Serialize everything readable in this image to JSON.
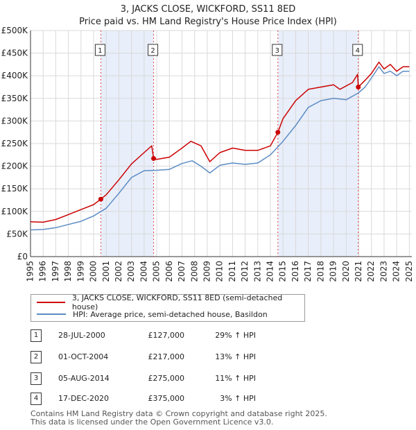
{
  "header": {
    "title": "3, JACKS CLOSE, WICKFORD, SS11 8ED",
    "subtitle": "Price paid vs. HM Land Registry's House Price Index (HPI)"
  },
  "chart_data": {
    "type": "line",
    "title": "3, JACKS CLOSE, WICKFORD, SS11 8ED",
    "subtitle": "Price paid vs. HM Land Registry's House Price Index (HPI)",
    "xlabel": "",
    "ylabel": "",
    "xlim": [
      1995,
      2025.2
    ],
    "ylim": [
      0,
      500000
    ],
    "y_ticks": [
      {
        "value": 0,
        "label": "£0"
      },
      {
        "value": 50000,
        "label": "£50K"
      },
      {
        "value": 100000,
        "label": "£100K"
      },
      {
        "value": 150000,
        "label": "£150K"
      },
      {
        "value": 200000,
        "label": "£200K"
      },
      {
        "value": 250000,
        "label": "£250K"
      },
      {
        "value": 300000,
        "label": "£300K"
      },
      {
        "value": 350000,
        "label": "£350K"
      },
      {
        "value": 400000,
        "label": "£400K"
      },
      {
        "value": 450000,
        "label": "£450K"
      },
      {
        "value": 500000,
        "label": "£500K"
      }
    ],
    "x_ticks": [
      1995,
      1996,
      1997,
      1998,
      1999,
      2000,
      2001,
      2002,
      2003,
      2004,
      2005,
      2006,
      2007,
      2008,
      2009,
      2010,
      2011,
      2012,
      2013,
      2014,
      2015,
      2016,
      2017,
      2018,
      2019,
      2020,
      2021,
      2022,
      2023,
      2024,
      2025
    ],
    "grid": true,
    "shaded_periods": [
      [
        2000.57,
        2004.75
      ],
      [
        2014.59,
        2020.96
      ]
    ],
    "series": [
      {
        "name": "3, JACKS CLOSE, WICKFORD, SS11 8ED (semi-detached house)",
        "color": "#cc0000",
        "x": [
          1995,
          1996,
          1997,
          1998,
          1999,
          2000,
          2000.57,
          2001,
          2002,
          2003,
          2004,
          2004.6,
          2004.75,
          2005,
          2006,
          2007,
          2007.7,
          2008.5,
          2009.2,
          2010,
          2011,
          2012,
          2013,
          2014,
          2014.59,
          2015,
          2016,
          2017,
          2018,
          2019,
          2019.5,
          2020.5,
          2020.9,
          2020.96,
          2021.5,
          2022,
          2022.6,
          2023,
          2023.5,
          2024,
          2024.5,
          2025
        ],
        "values": [
          77000,
          76000,
          82000,
          93000,
          104000,
          115000,
          127000,
          137000,
          170000,
          205000,
          230000,
          245000,
          217000,
          215000,
          220000,
          240000,
          255000,
          245000,
          210000,
          230000,
          240000,
          235000,
          235000,
          245000,
          275000,
          305000,
          345000,
          370000,
          375000,
          380000,
          370000,
          385000,
          403000,
          375000,
          390000,
          405000,
          430000,
          415000,
          425000,
          410000,
          420000,
          420000
        ]
      },
      {
        "name": "HPI: Average price, semi-detached house, Basildon",
        "color": "#5b8cc4",
        "x": [
          1995,
          1996,
          1997,
          1998,
          1999,
          2000,
          2001,
          2002,
          2003,
          2004,
          2005,
          2006,
          2007,
          2007.8,
          2008.5,
          2009.2,
          2010,
          2011,
          2012,
          2013,
          2014,
          2015,
          2016,
          2017,
          2018,
          2019,
          2020,
          2020.96,
          2021.5,
          2022,
          2022.6,
          2023,
          2023.5,
          2024,
          2024.5,
          2025
        ],
        "values": [
          59000,
          60000,
          64000,
          71000,
          78000,
          90000,
          107000,
          140000,
          175000,
          190000,
          191000,
          193000,
          206000,
          212000,
          200000,
          185000,
          202000,
          207000,
          204000,
          207000,
          225000,
          255000,
          290000,
          330000,
          345000,
          350000,
          347000,
          362000,
          375000,
          395000,
          420000,
          405000,
          410000,
          400000,
          410000,
          410000
        ]
      }
    ],
    "markers": [
      {
        "id": "1",
        "x": 2000.57,
        "y": 127000
      },
      {
        "id": "2",
        "x": 2004.75,
        "y": 217000
      },
      {
        "id": "3",
        "x": 2014.59,
        "y": 275000
      },
      {
        "id": "4",
        "x": 2020.96,
        "y": 375000
      }
    ]
  },
  "legend": {
    "items": [
      {
        "label": "3, JACKS CLOSE, WICKFORD, SS11 8ED (semi-detached house)",
        "color": "#cc0000"
      },
      {
        "label": "HPI: Average price, semi-detached house, Basildon",
        "color": "#5b8cc4"
      }
    ]
  },
  "transactions": [
    {
      "id": "1",
      "date": "28-JUL-2000",
      "price": "£127,000",
      "hpi": "29% ↑ HPI"
    },
    {
      "id": "2",
      "date": "01-OCT-2004",
      "price": "£217,000",
      "hpi": "13% ↑ HPI"
    },
    {
      "id": "3",
      "date": "05-AUG-2014",
      "price": "£275,000",
      "hpi": "11% ↑ HPI"
    },
    {
      "id": "4",
      "date": "17-DEC-2020",
      "price": "£375,000",
      "hpi": "3% ↑ HPI"
    }
  ],
  "footer": {
    "line1": "Contains HM Land Registry data © Crown copyright and database right 2025.",
    "line2": "This data is licensed under the Open Government Licence v3.0."
  }
}
